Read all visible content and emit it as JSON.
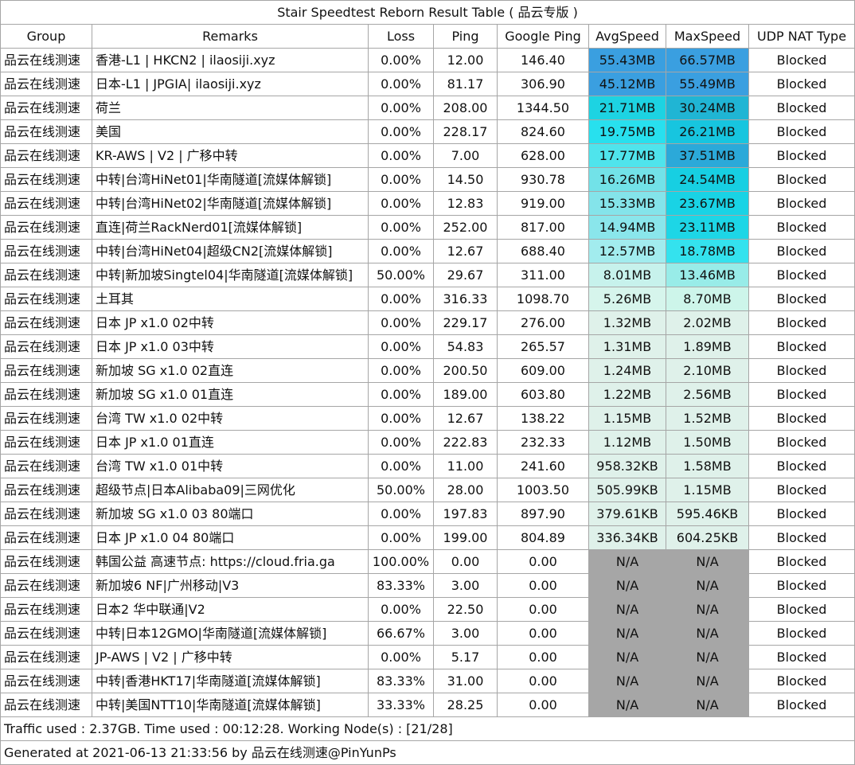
{
  "title": "Stair Speedtest Reborn Result Table ( 品云专版 )",
  "headers": [
    "Group",
    "Remarks",
    "Loss",
    "Ping",
    "Google Ping",
    "AvgSpeed",
    "MaxSpeed",
    "UDP NAT Type"
  ],
  "speed_colors": {
    "na": "#a6a6a6"
  },
  "rows": [
    {
      "group": "品云在线测速",
      "remarks": "香港-L1 | HKCN2 | ilaosiji.xyz",
      "loss": "0.00%",
      "ping": "12.00",
      "gping": "146.40",
      "avg": "55.43MB",
      "max": "66.57MB",
      "nat": "Blocked",
      "avg_color": "#3a9fe0",
      "max_color": "#3a9fe0"
    },
    {
      "group": "品云在线测速",
      "remarks": "日本-L1 | JPGIA| ilaosiji.xyz",
      "loss": "0.00%",
      "ping": "81.17",
      "gping": "306.90",
      "avg": "45.12MB",
      "max": "55.49MB",
      "nat": "Blocked",
      "avg_color": "#3a9fe0",
      "max_color": "#3a9fe0"
    },
    {
      "group": "品云在线测速",
      "remarks": "荷兰",
      "loss": "0.00%",
      "ping": "208.00",
      "gping": "1344.50",
      "avg": "21.71MB",
      "max": "30.24MB",
      "nat": "Blocked",
      "avg_color": "#1dd3e2",
      "max_color": "#20b5d4"
    },
    {
      "group": "品云在线测速",
      "remarks": "美国",
      "loss": "0.00%",
      "ping": "228.17",
      "gping": "824.60",
      "avg": "19.75MB",
      "max": "26.21MB",
      "nat": "Blocked",
      "avg_color": "#28e0ee",
      "max_color": "#17c5df"
    },
    {
      "group": "品云在线测速",
      "remarks": "KR-AWS | V2 | 广移中转",
      "loss": "0.00%",
      "ping": "7.00",
      "gping": "628.00",
      "avg": "17.77MB",
      "max": "37.51MB",
      "nat": "Blocked",
      "avg_color": "#4fe4ec",
      "max_color": "#2ba9d9"
    },
    {
      "group": "品云在线测速",
      "remarks": "中转|台湾HiNet01|华南隧道[流媒体解锁]",
      "loss": "0.00%",
      "ping": "14.50",
      "gping": "930.78",
      "avg": "16.26MB",
      "max": "24.54MB",
      "nat": "Blocked",
      "avg_color": "#72e2e8",
      "max_color": "#17cfe2"
    },
    {
      "group": "品云在线测速",
      "remarks": "中转|台湾HiNet02|华南隧道[流媒体解锁]",
      "loss": "0.00%",
      "ping": "12.83",
      "gping": "919.00",
      "avg": "15.33MB",
      "max": "23.67MB",
      "nat": "Blocked",
      "avg_color": "#84e4ea",
      "max_color": "#19d3e5"
    },
    {
      "group": "品云在线测速",
      "remarks": "直连|荷兰RackNerd01[流媒体解锁]",
      "loss": "0.00%",
      "ping": "252.00",
      "gping": "817.00",
      "avg": "14.94MB",
      "max": "23.11MB",
      "nat": "Blocked",
      "avg_color": "#8ae6eb",
      "max_color": "#1dd6e6"
    },
    {
      "group": "品云在线测速",
      "remarks": "中转|台湾HiNet04|超级CN2[流媒体解锁]",
      "loss": "0.00%",
      "ping": "12.67",
      "gping": "688.40",
      "avg": "12.57MB",
      "max": "18.78MB",
      "nat": "Blocked",
      "avg_color": "#a2ecee",
      "max_color": "#34e2ee"
    },
    {
      "group": "品云在线测速",
      "remarks": "中转|新加坡Singtel04|华南隧道[流媒体解锁]",
      "loss": "50.00%",
      "ping": "29.67",
      "gping": "311.00",
      "avg": "8.01MB",
      "max": "13.46MB",
      "nat": "Blocked",
      "avg_color": "#c7f2ec",
      "max_color": "#98ece8"
    },
    {
      "group": "品云在线测速",
      "remarks": "土耳其",
      "loss": "0.00%",
      "ping": "316.33",
      "gping": "1098.70",
      "avg": "5.26MB",
      "max": "8.70MB",
      "nat": "Blocked",
      "avg_color": "#d6f5ec",
      "max_color": "#cdf5ea"
    },
    {
      "group": "品云在线测速",
      "remarks": "日本 JP x1.0 02中转",
      "loss": "0.00%",
      "ping": "229.17",
      "gping": "276.00",
      "avg": "1.32MB",
      "max": "2.02MB",
      "nat": "Blocked",
      "avg_color": "#dff1ea",
      "max_color": "#dff1ea"
    },
    {
      "group": "品云在线测速",
      "remarks": "日本 JP x1.0 03中转",
      "loss": "0.00%",
      "ping": "54.83",
      "gping": "265.57",
      "avg": "1.31MB",
      "max": "1.89MB",
      "nat": "Blocked",
      "avg_color": "#dff1ea",
      "max_color": "#dff1ea"
    },
    {
      "group": "品云在线测速",
      "remarks": "新加坡 SG x1.0 02直连",
      "loss": "0.00%",
      "ping": "200.50",
      "gping": "609.00",
      "avg": "1.24MB",
      "max": "2.10MB",
      "nat": "Blocked",
      "avg_color": "#dff1ea",
      "max_color": "#dff1ea"
    },
    {
      "group": "品云在线测速",
      "remarks": "新加坡 SG x1.0 01直连",
      "loss": "0.00%",
      "ping": "189.00",
      "gping": "603.80",
      "avg": "1.22MB",
      "max": "2.56MB",
      "nat": "Blocked",
      "avg_color": "#dff1ea",
      "max_color": "#dff1ea"
    },
    {
      "group": "品云在线测速",
      "remarks": "台湾 TW x1.0 02中转",
      "loss": "0.00%",
      "ping": "12.67",
      "gping": "138.22",
      "avg": "1.15MB",
      "max": "1.52MB",
      "nat": "Blocked",
      "avg_color": "#dff1ea",
      "max_color": "#dff1ea"
    },
    {
      "group": "品云在线测速",
      "remarks": "日本 JP x1.0 01直连",
      "loss": "0.00%",
      "ping": "222.83",
      "gping": "232.33",
      "avg": "1.12MB",
      "max": "1.50MB",
      "nat": "Blocked",
      "avg_color": "#dff1ea",
      "max_color": "#dff1ea"
    },
    {
      "group": "品云在线测速",
      "remarks": "台湾 TW x1.0 01中转",
      "loss": "0.00%",
      "ping": "11.00",
      "gping": "241.60",
      "avg": "958.32KB",
      "max": "1.58MB",
      "nat": "Blocked",
      "avg_color": "#dff1ea",
      "max_color": "#dff1ea"
    },
    {
      "group": "品云在线测速",
      "remarks": "超级节点|日本Alibaba09|三网优化",
      "loss": "50.00%",
      "ping": "28.00",
      "gping": "1003.50",
      "avg": "505.99KB",
      "max": "1.15MB",
      "nat": "Blocked",
      "avg_color": "#dff1ea",
      "max_color": "#dff1ea"
    },
    {
      "group": "品云在线测速",
      "remarks": "新加坡 SG x1.0 03 80端口",
      "loss": "0.00%",
      "ping": "197.83",
      "gping": "897.90",
      "avg": "379.61KB",
      "max": "595.46KB",
      "nat": "Blocked",
      "avg_color": "#dff1ea",
      "max_color": "#dff1ea"
    },
    {
      "group": "品云在线测速",
      "remarks": "日本 JP x1.0 04 80端口",
      "loss": "0.00%",
      "ping": "199.00",
      "gping": "804.89",
      "avg": "336.34KB",
      "max": "604.25KB",
      "nat": "Blocked",
      "avg_color": "#dff1ea",
      "max_color": "#dff1ea"
    },
    {
      "group": "品云在线测速",
      "remarks": "韩国公益 高速节点: https://cloud.fria.ga",
      "loss": "100.00%",
      "ping": "0.00",
      "gping": "0.00",
      "avg": "N/A",
      "max": "N/A",
      "nat": "Blocked",
      "avg_color": "#a6a6a6",
      "max_color": "#a6a6a6"
    },
    {
      "group": "品云在线测速",
      "remarks": "新加坡6 NF|广州移动|V3",
      "loss": "83.33%",
      "ping": "3.00",
      "gping": "0.00",
      "avg": "N/A",
      "max": "N/A",
      "nat": "Blocked",
      "avg_color": "#a6a6a6",
      "max_color": "#a6a6a6"
    },
    {
      "group": "品云在线测速",
      "remarks": "日本2 华中联通|V2",
      "loss": "0.00%",
      "ping": "22.50",
      "gping": "0.00",
      "avg": "N/A",
      "max": "N/A",
      "nat": "Blocked",
      "avg_color": "#a6a6a6",
      "max_color": "#a6a6a6"
    },
    {
      "group": "品云在线测速",
      "remarks": "中转|日本12GMO|华南隧道[流媒体解锁]",
      "loss": "66.67%",
      "ping": "3.00",
      "gping": "0.00",
      "avg": "N/A",
      "max": "N/A",
      "nat": "Blocked",
      "avg_color": "#a6a6a6",
      "max_color": "#a6a6a6"
    },
    {
      "group": "品云在线测速",
      "remarks": "JP-AWS | V2 | 广移中转",
      "loss": "0.00%",
      "ping": "5.17",
      "gping": "0.00",
      "avg": "N/A",
      "max": "N/A",
      "nat": "Blocked",
      "avg_color": "#a6a6a6",
      "max_color": "#a6a6a6"
    },
    {
      "group": "品云在线测速",
      "remarks": "中转|香港HKT17|华南隧道[流媒体解锁]",
      "loss": "83.33%",
      "ping": "31.00",
      "gping": "0.00",
      "avg": "N/A",
      "max": "N/A",
      "nat": "Blocked",
      "avg_color": "#a6a6a6",
      "max_color": "#a6a6a6"
    },
    {
      "group": "品云在线测速",
      "remarks": "中转|美国NTT10|华南隧道[流媒体解锁]",
      "loss": "33.33%",
      "ping": "28.25",
      "gping": "0.00",
      "avg": "N/A",
      "max": "N/A",
      "nat": "Blocked",
      "avg_color": "#a6a6a6",
      "max_color": "#a6a6a6"
    }
  ],
  "footer": {
    "traffic": "Traffic used : 2.37GB. Time used : 00:12:28. Working Node(s) : [21/28]",
    "generated": "Generated at 2021-06-13 21:33:56 by 品云在线测速@PinYunPs"
  }
}
